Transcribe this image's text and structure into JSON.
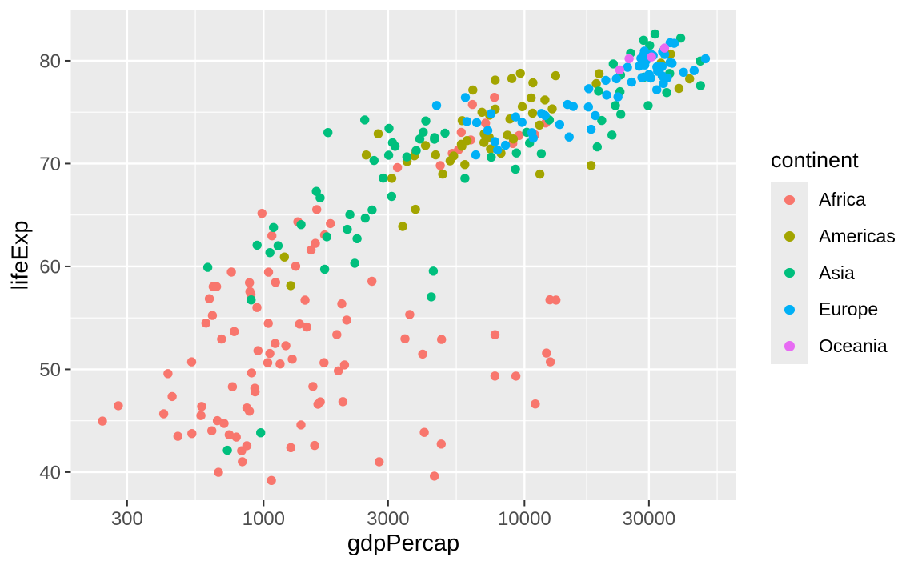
{
  "chart_data": {
    "type": "scatter",
    "title": "",
    "xlabel": "gdpPercap",
    "ylabel": "lifeExp",
    "x_scale": "log10",
    "x_ticks": [
      300,
      1000,
      3000,
      10000,
      30000
    ],
    "x_minor_ticks": [
      547.7,
      1732.1,
      5477.2,
      17320.5,
      54772.3
    ],
    "y_ticks": [
      40,
      50,
      60,
      70,
      80
    ],
    "y_minor_ticks": [
      45,
      55,
      65,
      75
    ],
    "x_domain_log10": [
      2.2613,
      4.8119
    ],
    "y_domain": [
      37.27,
      84.9
    ],
    "grid": true,
    "colors": {
      "panel_bg": "#EBEBEB",
      "grid": "#FFFFFF",
      "tick_mark": "#333333",
      "tick_label": "#4D4D4D",
      "axis_title": "#000000"
    },
    "legend": {
      "title": "continent",
      "position": "right",
      "entries": [
        {
          "label": "Africa",
          "color": "#F8766D"
        },
        {
          "label": "Americas",
          "color": "#A3A500"
        },
        {
          "label": "Asia",
          "color": "#00BF7D"
        },
        {
          "label": "Europe",
          "color": "#00B0F6"
        },
        {
          "label": "Oceania",
          "color": "#E76BF3"
        }
      ]
    },
    "series": [
      {
        "name": "Africa",
        "color": "#F8766D",
        "points": [
          [
            5288.0,
            70.994
          ],
          [
            6223.4,
            72.301
          ],
          [
            2773.3,
            41.003
          ],
          [
            4797.2,
            42.731
          ],
          [
            1372.9,
            54.406
          ],
          [
            1441.3,
            56.728
          ],
          [
            11003.6,
            46.634
          ],
          [
            12569.9,
            50.728
          ],
          [
            1037.6,
            50.65
          ],
          [
            1217.0,
            52.295
          ],
          [
            446.4,
            47.36
          ],
          [
            430.1,
            49.58
          ],
          [
            1934.0,
            49.856
          ],
          [
            2042.1,
            50.43
          ],
          [
            738.7,
            43.64
          ],
          [
            706.0,
            44.741
          ],
          [
            1156.2,
            50.525
          ],
          [
            1704.1,
            50.651
          ],
          [
            1075.8,
            62.974
          ],
          [
            986.1,
            65.152
          ],
          [
            241.2,
            44.966
          ],
          [
            277.6,
            46.462
          ],
          [
            3484.2,
            52.97
          ],
          [
            3632.6,
            55.322
          ],
          [
            1648.8,
            46.832
          ],
          [
            1544.8,
            48.328
          ],
          [
            1908.3,
            53.373
          ],
          [
            2082.5,
            54.791
          ],
          [
            4754.6,
            69.806
          ],
          [
            5581.2,
            71.338
          ],
          [
            7703.5,
            49.348
          ],
          [
            12154.1,
            51.579
          ],
          [
            636.6,
            55.24
          ],
          [
            641.4,
            58.04
          ],
          [
            530.1,
            50.725
          ],
          [
            690.8,
            52.947
          ],
          [
            12521.7,
            56.761
          ],
          [
            13206.5,
            56.735
          ],
          [
            660.6,
            58.041
          ],
          [
            752.7,
            59.448
          ],
          [
            1112.0,
            58.453
          ],
          [
            1327.6,
            60.022
          ],
          [
            772.0,
            53.676
          ],
          [
            942.7,
            56.007
          ],
          [
            575.7,
            45.504
          ],
          [
            579.2,
            46.388
          ],
          [
            1287.5,
            50.992
          ],
          [
            1463.2,
            54.11
          ],
          [
            1390.9,
            44.593
          ],
          [
            1569.3,
            42.592
          ],
          [
            531.5,
            43.753
          ],
          [
            414.5,
            45.678
          ],
          [
            9534.7,
            72.737
          ],
          [
            12057.5,
            73.952
          ],
          [
            894.6,
            57.286
          ],
          [
            1044.8,
            59.443
          ],
          [
            665.4,
            45.009
          ],
          [
            759.4,
            48.303
          ],
          [
            951.4,
            51.818
          ],
          [
            1042.6,
            54.467
          ],
          [
            1579.0,
            62.247
          ],
          [
            1803.2,
            64.164
          ],
          [
            9021.8,
            71.954
          ],
          [
            10957.0,
            72.801
          ],
          [
            3258.5,
            69.615
          ],
          [
            3820.2,
            71.164
          ],
          [
            633.6,
            44.026
          ],
          [
            823.7,
            42.082
          ],
          [
            4072.3,
            51.479
          ],
          [
            4811.1,
            52.906
          ],
          [
            601.1,
            54.496
          ],
          [
            619.7,
            56.867
          ],
          [
            1615.3,
            46.608
          ],
          [
            2014.0,
            46.859
          ],
          [
            6316.2,
            75.744
          ],
          [
            7670.1,
            76.442
          ],
          [
            785.7,
            43.413
          ],
          [
            863.1,
            46.242
          ],
          [
            1353.1,
            64.337
          ],
          [
            1598.4,
            65.528
          ],
          [
            1519.6,
            61.6
          ],
          [
            1712.5,
            63.062
          ],
          [
            829.4,
            41.012
          ],
          [
            862.5,
            42.568
          ],
          [
            882.1,
            45.936
          ],
          [
            926.1,
            48.159
          ],
          [
            7710.9,
            53.365
          ],
          [
            9269.7,
            49.339
          ],
          [
            1993.4,
            56.369
          ],
          [
            2602.4,
            58.556
          ],
          [
            4128.1,
            43.869
          ],
          [
            4513.5,
            39.613
          ],
          [
            899.1,
            49.651
          ],
          [
            1107.5,
            52.517
          ],
          [
            886.2,
            57.561
          ],
          [
            883.0,
            58.42
          ],
          [
            5722.9,
            73.042
          ],
          [
            7092.9,
            73.923
          ],
          [
            927.7,
            47.813
          ],
          [
            1056.4,
            51.542
          ],
          [
            1071.6,
            39.193
          ],
          [
            1271.2,
            42.384
          ],
          [
            672.0,
            39.989
          ],
          [
            469.7,
            43.487
          ]
        ]
      },
      {
        "name": "Americas",
        "color": "#A3A500",
        "points": [
          [
            8797.6,
            74.34
          ],
          [
            12779.4,
            75.32
          ],
          [
            3413.3,
            63.883
          ],
          [
            3822.1,
            65.554
          ],
          [
            8131.2,
            71.006
          ],
          [
            9065.8,
            72.39
          ],
          [
            33329.0,
            79.77
          ],
          [
            36319.2,
            80.653
          ],
          [
            10778.8,
            77.86
          ],
          [
            13171.6,
            78.553
          ],
          [
            5755.3,
            71.682
          ],
          [
            7006.6,
            72.889
          ],
          [
            7723.4,
            78.123
          ],
          [
            9645.1,
            78.782
          ],
          [
            6340.6,
            77.158
          ],
          [
            8948.1,
            78.273
          ],
          [
            4563.8,
            70.847
          ],
          [
            6025.4,
            72.235
          ],
          [
            5773.0,
            74.173
          ],
          [
            6873.3,
            74.994
          ],
          [
            5351.6,
            70.734
          ],
          [
            5728.4,
            71.878
          ],
          [
            4858.3,
            68.978
          ],
          [
            5186.1,
            70.259
          ],
          [
            1270.4,
            58.137
          ],
          [
            1201.6,
            60.916
          ],
          [
            3099.7,
            68.565
          ],
          [
            3548.3,
            70.198
          ],
          [
            6994.8,
            72.047
          ],
          [
            7320.9,
            72.567
          ],
          [
            10742.4,
            74.902
          ],
          [
            11977.6,
            76.195
          ],
          [
            2474.5,
            70.836
          ],
          [
            2749.3,
            72.899
          ],
          [
            7356.0,
            74.712
          ],
          [
            9809.2,
            75.537
          ],
          [
            3783.7,
            70.755
          ],
          [
            4172.8,
            71.752
          ],
          [
            5909.0,
            69.906
          ],
          [
            7408.9,
            71.421
          ],
          [
            18855.6,
            77.778
          ],
          [
            19328.7,
            78.746
          ],
          [
            11460.6,
            68.976
          ],
          [
            18008.5,
            69.819
          ],
          [
            39097.1,
            77.31
          ],
          [
            42951.7,
            78.242
          ],
          [
            7727.0,
            75.307
          ],
          [
            10611.5,
            76.384
          ],
          [
            8605.0,
            72.766
          ],
          [
            11415.8,
            73.747
          ]
        ]
      },
      {
        "name": "Asia",
        "color": "#00BF7D",
        "points": [
          [
            726.7,
            42.129
          ],
          [
            974.6,
            43.828
          ],
          [
            23403.6,
            74.795
          ],
          [
            29796.0,
            75.635
          ],
          [
            1136.4,
            62.013
          ],
          [
            1391.2,
            64.062
          ],
          [
            896.2,
            56.752
          ],
          [
            1713.8,
            59.723
          ],
          [
            3119.3,
            72.028
          ],
          [
            4959.1,
            72.961
          ],
          [
            30209.0,
            81.495
          ],
          [
            39725.0,
            82.208
          ],
          [
            1746.8,
            62.879
          ],
          [
            2452.2,
            64.698
          ],
          [
            2873.9,
            68.588
          ],
          [
            3540.7,
            70.65
          ],
          [
            9240.8,
            69.451
          ],
          [
            11605.7,
            70.964
          ],
          [
            4390.7,
            57.046
          ],
          [
            4471.1,
            59.545
          ],
          [
            21905.6,
            79.696
          ],
          [
            25523.3,
            80.745
          ],
          [
            28604.6,
            82.0
          ],
          [
            31656.1,
            82.603
          ],
          [
            3844.9,
            71.263
          ],
          [
            4519.5,
            72.535
          ],
          [
            1646.8,
            66.662
          ],
          [
            1593.1,
            67.297
          ],
          [
            19234.0,
            77.045
          ],
          [
            23348.1,
            78.623
          ],
          [
            35110.1,
            76.904
          ],
          [
            47307.0,
            77.588
          ],
          [
            9313.9,
            71.028
          ],
          [
            10461.1,
            71.993
          ],
          [
            10207.0,
            73.044
          ],
          [
            12451.7,
            74.241
          ],
          [
            2140.7,
            65.033
          ],
          [
            3095.8,
            66.803
          ],
          [
            611.0,
            59.908
          ],
          [
            944.0,
            62.069
          ],
          [
            1057.2,
            61.34
          ],
          [
            1091.4,
            63.785
          ],
          [
            19774.8,
            74.193
          ],
          [
            22316.2,
            75.64
          ],
          [
            2092.7,
            63.61
          ],
          [
            2606.0,
            65.483
          ],
          [
            2650.9,
            70.303
          ],
          [
            3190.5,
            71.688
          ],
          [
            19014.5,
            71.626
          ],
          [
            21654.8,
            72.777
          ],
          [
            36023.1,
            78.77
          ],
          [
            47143.2,
            79.972
          ],
          [
            3015.4,
            70.815
          ],
          [
            3970.1,
            72.396
          ],
          [
            4090.9,
            73.053
          ],
          [
            4184.6,
            74.143
          ],
          [
            23235.4,
            76.99
          ],
          [
            28718.3,
            78.4
          ],
          [
            5913.2,
            68.564
          ],
          [
            7458.4,
            70.616
          ],
          [
            1764.5,
            73.017
          ],
          [
            2441.6,
            74.249
          ],
          [
            4515.5,
            72.37
          ],
          [
            3025.3,
            73.422
          ],
          [
            2234.8,
            60.308
          ],
          [
            2280.8,
            62.698
          ]
        ]
      },
      {
        "name": "Europe",
        "color": "#00B0F6",
        "points": [
          [
            4604.2,
            75.651
          ],
          [
            5937.0,
            76.423
          ],
          [
            32417.6,
            78.98
          ],
          [
            36126.5,
            79.829
          ],
          [
            30485.9,
            78.32
          ],
          [
            33692.6,
            79.441
          ],
          [
            6019.0,
            74.09
          ],
          [
            7446.3,
            74.852
          ],
          [
            7696.8,
            72.14
          ],
          [
            10680.8,
            73.005
          ],
          [
            11628.4,
            74.876
          ],
          [
            14619.2,
            75.748
          ],
          [
            17595.6,
            75.51
          ],
          [
            22833.3,
            76.486
          ],
          [
            32166.5,
            77.18
          ],
          [
            35278.4,
            78.332
          ],
          [
            28204.6,
            78.37
          ],
          [
            33207.1,
            79.313
          ],
          [
            28926.0,
            79.59
          ],
          [
            30470.0,
            80.657
          ],
          [
            30035.8,
            78.67
          ],
          [
            32170.4,
            79.406
          ],
          [
            22514.3,
            78.256
          ],
          [
            27538.4,
            79.483
          ],
          [
            14843.9,
            72.59
          ],
          [
            18008.9,
            73.338
          ],
          [
            31163.2,
            80.5
          ],
          [
            36180.8,
            81.757
          ],
          [
            34077.0,
            77.783
          ],
          [
            40676.0,
            78.885
          ],
          [
            27968.1,
            80.24
          ],
          [
            28569.7,
            80.546
          ],
          [
            6557.2,
            73.981
          ],
          [
            9253.9,
            74.543
          ],
          [
            33724.8,
            78.53
          ],
          [
            36797.9,
            79.762
          ],
          [
            44684.0,
            79.05
          ],
          [
            49357.2,
            80.196
          ],
          [
            12002.2,
            74.67
          ],
          [
            15389.9,
            75.563
          ],
          [
            17641.0,
            77.29
          ],
          [
            20509.6,
            78.098
          ],
          [
            7885.4,
            71.322
          ],
          [
            10808.5,
            72.476
          ],
          [
            7236.1,
            73.213
          ],
          [
            9786.5,
            74.002
          ],
          [
            13638.8,
            73.8
          ],
          [
            18678.3,
            74.663
          ],
          [
            20660.0,
            76.66
          ],
          [
            25768.3,
            77.926
          ],
          [
            24835.5,
            79.37
          ],
          [
            28821.1,
            80.941
          ],
          [
            29341.6,
            80.04
          ],
          [
            33860.0,
            80.884
          ],
          [
            34481.0,
            80.62
          ],
          [
            37506.4,
            81.701
          ],
          [
            6508.1,
            70.845
          ],
          [
            8458.3,
            71.777
          ],
          [
            29479.0,
            78.471
          ],
          [
            33203.3,
            79.425
          ]
        ]
      },
      {
        "name": "Oceania",
        "color": "#E76BF3",
        "points": [
          [
            30687.8,
            80.37
          ],
          [
            34435.4,
            81.235
          ],
          [
            23189.8,
            79.11
          ],
          [
            25185.0,
            80.204
          ]
        ]
      }
    ]
  }
}
